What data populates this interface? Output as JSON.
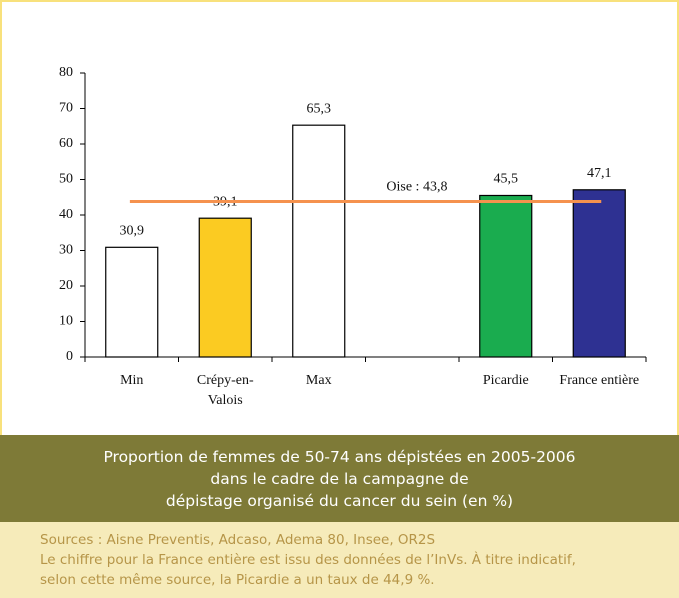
{
  "chart_data": {
    "type": "bar",
    "categories": [
      "Min",
      "Crépy-en-Valois",
      "Max",
      null,
      "Picardie",
      "France entière"
    ],
    "values": [
      30.9,
      39.1,
      65.3,
      null,
      45.5,
      47.1
    ],
    "value_labels": [
      "30,9",
      "39,1",
      "65,3",
      null,
      "45,5",
      "47,1"
    ],
    "colors": [
      "#ffffff",
      "#fbcb22",
      "#ffffff",
      null,
      "#1aac4f",
      "#2e3192"
    ],
    "ylim": [
      0,
      80
    ],
    "yticks": [
      0,
      10,
      20,
      30,
      40,
      50,
      60,
      70,
      80
    ],
    "reference_line": {
      "value": 43.8,
      "label": "Oise : 43,8",
      "color": "#f5924e"
    }
  },
  "caption": [
    "Proportion de femmes de 50-74 ans dépistées en 2005-2006",
    "dans le cadre de la campagne de",
    "dépistage organisé du cancer du sein (en %)"
  ],
  "sources": [
    "Sources : Aisne Preventis, Adcaso, Adema 80, Insee, OR2S",
    "Le chiffre pour la France entière est issu des données de l’InVs. À titre indicatif,",
    "selon cette même source, la Picardie a un taux de 44,9 %."
  ]
}
